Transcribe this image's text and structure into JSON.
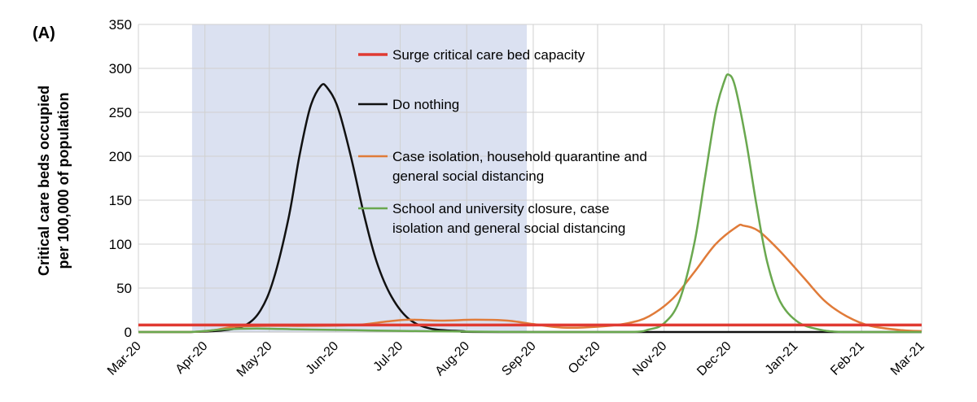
{
  "panel_label": "(A)",
  "colors": {
    "surge": "#e03a32",
    "do_nothing": "#111111",
    "case_isolation": "#e07b39",
    "school_closure": "#6aa84f",
    "shade": "#dbe1f1",
    "grid": "#d0d0d0"
  },
  "chart_data": {
    "type": "line",
    "ylabel_lines": [
      "Critical care beds occupied",
      "per 100,000 of population"
    ],
    "xlabel": "",
    "ylim": [
      0,
      350
    ],
    "yticks": [
      0,
      50,
      100,
      150,
      200,
      250,
      300,
      350
    ],
    "x_ticks": [
      "Mar-20",
      "Apr-20",
      "May-20",
      "Jun-20",
      "Jul-20",
      "Aug-20",
      "Sep-20",
      "Oct-20",
      "Nov-20",
      "Dec-20",
      "Jan-21",
      "Feb-21",
      "Mar-21"
    ],
    "grid": true,
    "legend_placement": "inside-center",
    "shaded_intervals": [
      {
        "from": "2020-03-26",
        "to": "2020-08-29"
      }
    ],
    "series": [
      {
        "name": "Surge critical care bed capacity",
        "color_key": "surge",
        "points": [
          [
            "2020-03-01",
            8
          ],
          [
            "2021-03-01",
            8
          ]
        ]
      },
      {
        "name": "Do nothing",
        "color_key": "do_nothing",
        "points": [
          [
            "2020-03-01",
            0
          ],
          [
            "2020-03-25",
            0
          ],
          [
            "2020-04-10",
            2
          ],
          [
            "2020-04-20",
            8
          ],
          [
            "2020-04-27",
            25
          ],
          [
            "2020-05-03",
            60
          ],
          [
            "2020-05-10",
            130
          ],
          [
            "2020-05-15",
            200
          ],
          [
            "2020-05-20",
            255
          ],
          [
            "2020-05-25",
            280
          ],
          [
            "2020-05-28",
            278
          ],
          [
            "2020-06-02",
            255
          ],
          [
            "2020-06-08",
            200
          ],
          [
            "2020-06-14",
            135
          ],
          [
            "2020-06-20",
            80
          ],
          [
            "2020-06-27",
            40
          ],
          [
            "2020-07-05",
            15
          ],
          [
            "2020-07-15",
            4
          ],
          [
            "2020-07-30",
            1
          ],
          [
            "2020-08-20",
            0
          ],
          [
            "2021-03-01",
            0
          ]
        ]
      },
      {
        "name": "Case isolation, household quarantine and general social distancing",
        "color_key": "case_isolation",
        "points": [
          [
            "2020-03-01",
            0
          ],
          [
            "2020-03-25",
            0
          ],
          [
            "2020-04-05",
            2
          ],
          [
            "2020-04-15",
            6
          ],
          [
            "2020-05-01",
            7
          ],
          [
            "2020-05-20",
            7
          ],
          [
            "2020-06-10",
            8
          ],
          [
            "2020-06-25",
            12
          ],
          [
            "2020-07-05",
            14
          ],
          [
            "2020-07-20",
            13
          ],
          [
            "2020-08-05",
            14
          ],
          [
            "2020-08-20",
            13
          ],
          [
            "2020-09-01",
            9
          ],
          [
            "2020-09-15",
            5
          ],
          [
            "2020-10-01",
            6
          ],
          [
            "2020-10-15",
            10
          ],
          [
            "2020-10-25",
            18
          ],
          [
            "2020-11-05",
            38
          ],
          [
            "2020-11-15",
            68
          ],
          [
            "2020-11-25",
            100
          ],
          [
            "2020-12-05",
            120
          ],
          [
            "2020-12-08",
            121
          ],
          [
            "2020-12-15",
            115
          ],
          [
            "2020-12-25",
            92
          ],
          [
            "2021-01-05",
            62
          ],
          [
            "2021-01-15",
            35
          ],
          [
            "2021-01-25",
            18
          ],
          [
            "2021-02-05",
            7
          ],
          [
            "2021-02-20",
            2
          ],
          [
            "2021-03-01",
            1
          ]
        ]
      },
      {
        "name": "School and university closure, case isolation and general social distancing",
        "color_key": "school_closure",
        "points": [
          [
            "2020-03-01",
            0
          ],
          [
            "2020-03-25",
            0
          ],
          [
            "2020-04-10",
            3
          ],
          [
            "2020-04-25",
            4
          ],
          [
            "2020-05-15",
            3
          ],
          [
            "2020-06-10",
            2
          ],
          [
            "2020-07-10",
            1
          ],
          [
            "2020-08-30",
            0
          ],
          [
            "2020-10-15",
            0
          ],
          [
            "2020-10-25",
            3
          ],
          [
            "2020-11-01",
            10
          ],
          [
            "2020-11-08",
            35
          ],
          [
            "2020-11-15",
            100
          ],
          [
            "2020-11-20",
            175
          ],
          [
            "2020-11-25",
            250
          ],
          [
            "2020-11-29",
            285
          ],
          [
            "2020-12-01",
            293
          ],
          [
            "2020-12-04",
            280
          ],
          [
            "2020-12-09",
            220
          ],
          [
            "2020-12-14",
            145
          ],
          [
            "2020-12-19",
            80
          ],
          [
            "2020-12-25",
            35
          ],
          [
            "2021-01-02",
            12
          ],
          [
            "2021-01-12",
            3
          ],
          [
            "2021-01-25",
            0
          ],
          [
            "2021-03-01",
            0
          ]
        ]
      }
    ]
  }
}
